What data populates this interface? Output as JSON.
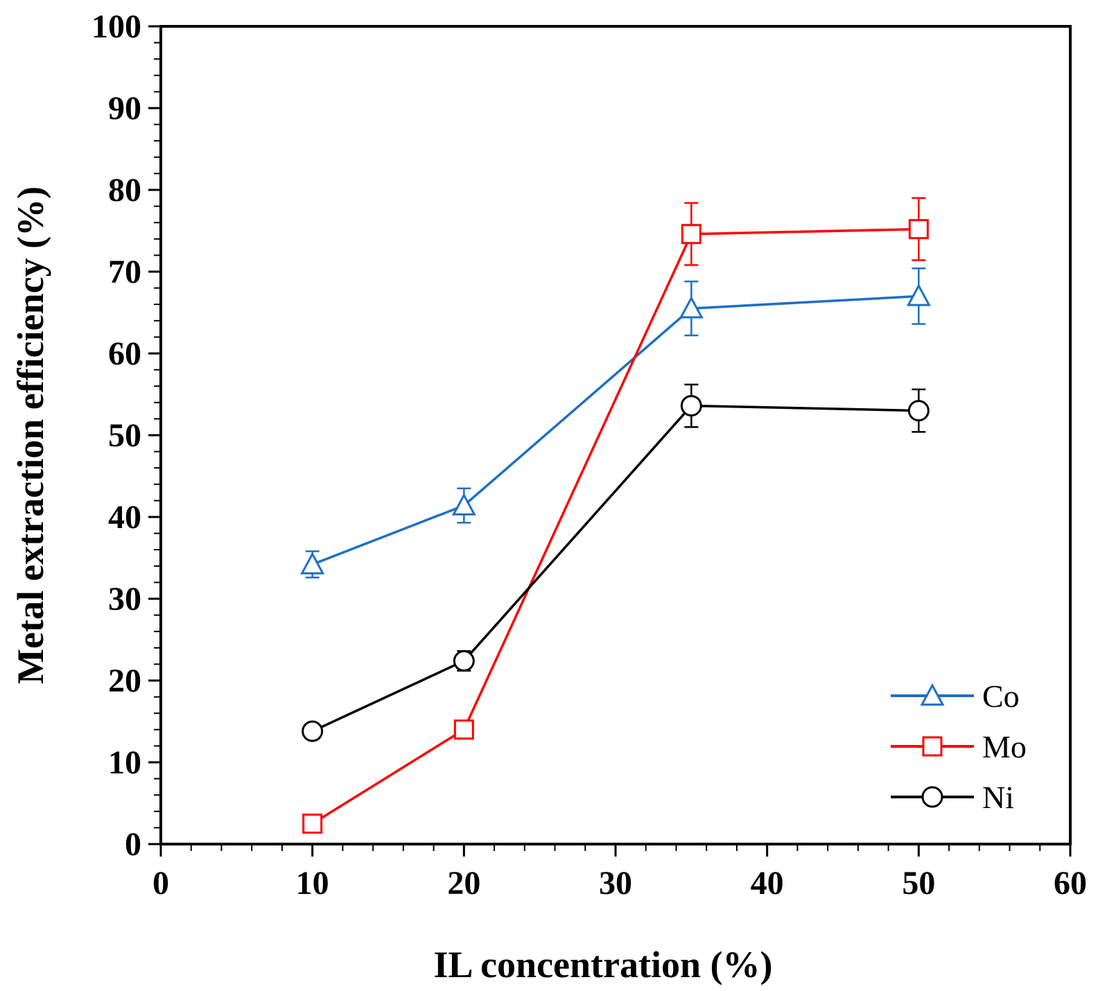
{
  "chart_data": {
    "type": "line",
    "title": "",
    "xlabel": "IL concentration (%)",
    "ylabel": "Metal extraction efficiency (%)",
    "xlim": [
      0,
      60
    ],
    "ylim": [
      0,
      100
    ],
    "x_major_ticks": [
      0,
      10,
      20,
      30,
      40,
      50,
      60
    ],
    "y_major_ticks": [
      0,
      10,
      20,
      30,
      40,
      50,
      60,
      70,
      80,
      90,
      100
    ],
    "x_tick_labels": [
      "0",
      "10",
      "20",
      "30",
      "40",
      "50",
      "60"
    ],
    "y_tick_labels": [
      "0",
      "10",
      "20",
      "30",
      "40",
      "50",
      "60",
      "70",
      "80",
      "90",
      "100"
    ],
    "x_minor_step": 2,
    "y_minor_step": 2,
    "grid": false,
    "legend_position": "bottom-right",
    "series": [
      {
        "name": "Co",
        "marker": "triangle",
        "color": "#1f6fc4",
        "x": [
          10,
          20,
          35,
          50
        ],
        "values": [
          34.2,
          41.4,
          65.5,
          67.0
        ],
        "error": [
          1.6,
          2.1,
          3.3,
          3.4
        ]
      },
      {
        "name": "Mo",
        "marker": "square",
        "color": "#ff0000",
        "x": [
          10,
          20,
          35,
          50
        ],
        "values": [
          2.5,
          14.0,
          74.6,
          75.2
        ],
        "error": [
          0,
          0,
          3.8,
          3.8
        ]
      },
      {
        "name": "Ni",
        "marker": "circle",
        "color": "#000000",
        "x": [
          10,
          20,
          35,
          50
        ],
        "values": [
          13.8,
          22.4,
          53.6,
          53.0
        ],
        "error": [
          0,
          1.2,
          2.6,
          2.6
        ]
      }
    ]
  }
}
